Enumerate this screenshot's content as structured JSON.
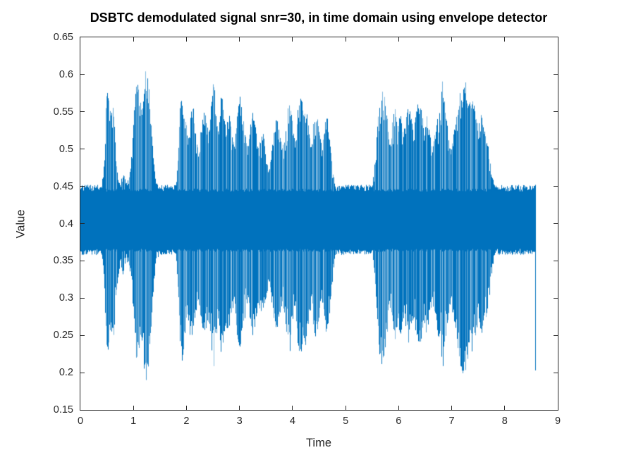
{
  "figure": {
    "background": "#ffffff"
  },
  "chart_data": {
    "type": "line",
    "title": "DSBTC demodulated signal snr=30, in time domain using envelope detector",
    "xlabel": "Time",
    "ylabel": "Value",
    "xlim": [
      0,
      9
    ],
    "ylim": [
      0.15,
      0.65
    ],
    "xticks": [
      0,
      1,
      2,
      3,
      4,
      5,
      6,
      7,
      8,
      9
    ],
    "xtick_labels": [
      "0",
      "1",
      "2",
      "3",
      "4",
      "5",
      "6",
      "7",
      "8",
      "9"
    ],
    "yticks": [
      0.15,
      0.2,
      0.25,
      0.3,
      0.35,
      0.4,
      0.45,
      0.5,
      0.55,
      0.6,
      0.65
    ],
    "ytick_labels": [
      "0.15",
      "0.2",
      "0.25",
      "0.3",
      "0.35",
      "0.4",
      "0.45",
      "0.5",
      "0.55",
      "0.6",
      "0.65"
    ],
    "grid": false,
    "legend": null,
    "line_color": "#0072bd",
    "line_color_light": "rgba(0,114,189,0.55)",
    "axis_color": "#262626",
    "signal": {
      "center": 0.405,
      "t_start": 0,
      "t_end": 8.57,
      "core_hi": 0.447,
      "core_lo": 0.362,
      "end_spike": [
        8.57,
        0.452,
        0.203
      ],
      "envelope": [
        [
          0.0,
          0.452,
          0.358
        ],
        [
          0.4,
          0.452,
          0.358
        ],
        [
          0.44,
          0.48,
          0.33
        ],
        [
          0.48,
          0.57,
          0.24
        ],
        [
          0.52,
          0.592,
          0.225
        ],
        [
          0.57,
          0.55,
          0.25
        ],
        [
          0.62,
          0.56,
          0.24
        ],
        [
          0.66,
          0.5,
          0.29
        ],
        [
          0.7,
          0.46,
          0.325
        ],
        [
          0.75,
          0.452,
          0.345
        ],
        [
          0.8,
          0.475,
          0.33
        ],
        [
          0.85,
          0.455,
          0.35
        ],
        [
          0.9,
          0.46,
          0.345
        ],
        [
          0.95,
          0.48,
          0.33
        ],
        [
          1.0,
          0.545,
          0.27
        ],
        [
          1.05,
          0.6,
          0.215
        ],
        [
          1.1,
          0.575,
          0.23
        ],
        [
          1.15,
          0.56,
          0.245
        ],
        [
          1.2,
          0.59,
          0.2
        ],
        [
          1.24,
          0.615,
          0.186
        ],
        [
          1.28,
          0.6,
          0.21
        ],
        [
          1.32,
          0.56,
          0.245
        ],
        [
          1.36,
          0.5,
          0.3
        ],
        [
          1.42,
          0.455,
          0.35
        ],
        [
          1.5,
          0.452,
          0.358
        ],
        [
          1.8,
          0.452,
          0.358
        ],
        [
          1.84,
          0.5,
          0.3
        ],
        [
          1.88,
          0.565,
          0.225
        ],
        [
          1.92,
          0.575,
          0.214
        ],
        [
          1.97,
          0.55,
          0.25
        ],
        [
          2.02,
          0.52,
          0.275
        ],
        [
          2.07,
          0.555,
          0.245
        ],
        [
          2.12,
          0.56,
          0.24
        ],
        [
          2.17,
          0.52,
          0.28
        ],
        [
          2.22,
          0.5,
          0.295
        ],
        [
          2.27,
          0.53,
          0.27
        ],
        [
          2.32,
          0.55,
          0.245
        ],
        [
          2.37,
          0.545,
          0.25
        ],
        [
          2.42,
          0.525,
          0.27
        ],
        [
          2.47,
          0.57,
          0.22
        ],
        [
          2.51,
          0.595,
          0.205
        ],
        [
          2.56,
          0.55,
          0.25
        ],
        [
          2.61,
          0.525,
          0.27
        ],
        [
          2.65,
          0.58,
          0.222
        ],
        [
          2.7,
          0.555,
          0.245
        ],
        [
          2.75,
          0.54,
          0.26
        ],
        [
          2.8,
          0.548,
          0.252
        ],
        [
          2.85,
          0.52,
          0.275
        ],
        [
          2.9,
          0.505,
          0.29
        ],
        [
          2.95,
          0.55,
          0.25
        ],
        [
          3.0,
          0.578,
          0.225
        ],
        [
          3.05,
          0.558,
          0.244
        ],
        [
          3.1,
          0.525,
          0.27
        ],
        [
          3.15,
          0.505,
          0.29
        ],
        [
          3.2,
          0.532,
          0.265
        ],
        [
          3.25,
          0.552,
          0.246
        ],
        [
          3.3,
          0.532,
          0.265
        ],
        [
          3.35,
          0.505,
          0.29
        ],
        [
          3.4,
          0.515,
          0.28
        ],
        [
          3.45,
          0.522,
          0.274
        ],
        [
          3.5,
          0.492,
          0.3
        ],
        [
          3.55,
          0.472,
          0.32
        ],
        [
          3.6,
          0.5,
          0.295
        ],
        [
          3.65,
          0.532,
          0.265
        ],
        [
          3.7,
          0.545,
          0.252
        ],
        [
          3.75,
          0.522,
          0.275
        ],
        [
          3.8,
          0.502,
          0.292
        ],
        [
          3.85,
          0.522,
          0.275
        ],
        [
          3.9,
          0.555,
          0.242
        ],
        [
          3.95,
          0.57,
          0.228
        ],
        [
          4.0,
          0.532,
          0.264
        ],
        [
          4.05,
          0.505,
          0.29
        ],
        [
          4.1,
          0.565,
          0.23
        ],
        [
          4.15,
          0.575,
          0.222
        ],
        [
          4.2,
          0.552,
          0.244
        ],
        [
          4.25,
          0.562,
          0.235
        ],
        [
          4.3,
          0.532,
          0.264
        ],
        [
          4.35,
          0.505,
          0.29
        ],
        [
          4.4,
          0.545,
          0.25
        ],
        [
          4.45,
          0.552,
          0.244
        ],
        [
          4.5,
          0.522,
          0.274
        ],
        [
          4.55,
          0.505,
          0.29
        ],
        [
          4.6,
          0.535,
          0.26
        ],
        [
          4.65,
          0.545,
          0.25
        ],
        [
          4.7,
          0.512,
          0.282
        ],
        [
          4.75,
          0.472,
          0.325
        ],
        [
          4.8,
          0.452,
          0.358
        ],
        [
          5.5,
          0.452,
          0.358
        ],
        [
          5.56,
          0.49,
          0.315
        ],
        [
          5.62,
          0.565,
          0.23
        ],
        [
          5.68,
          0.588,
          0.21
        ],
        [
          5.73,
          0.572,
          0.226
        ],
        [
          5.78,
          0.545,
          0.252
        ],
        [
          5.83,
          0.505,
          0.29
        ],
        [
          5.88,
          0.542,
          0.254
        ],
        [
          5.93,
          0.555,
          0.242
        ],
        [
          5.98,
          0.532,
          0.264
        ],
        [
          6.03,
          0.55,
          0.246
        ],
        [
          6.08,
          0.522,
          0.274
        ],
        [
          6.13,
          0.54,
          0.255
        ],
        [
          6.18,
          0.56,
          0.236
        ],
        [
          6.23,
          0.545,
          0.25
        ],
        [
          6.28,
          0.522,
          0.274
        ],
        [
          6.33,
          0.555,
          0.242
        ],
        [
          6.38,
          0.57,
          0.226
        ],
        [
          6.43,
          0.552,
          0.244
        ],
        [
          6.48,
          0.525,
          0.27
        ],
        [
          6.53,
          0.55,
          0.246
        ],
        [
          6.58,
          0.522,
          0.274
        ],
        [
          6.63,
          0.5,
          0.295
        ],
        [
          6.68,
          0.522,
          0.274
        ],
        [
          6.73,
          0.542,
          0.254
        ],
        [
          6.78,
          0.57,
          0.226
        ],
        [
          6.83,
          0.598,
          0.206
        ],
        [
          6.88,
          0.552,
          0.244
        ],
        [
          6.93,
          0.522,
          0.272
        ],
        [
          6.98,
          0.502,
          0.292
        ],
        [
          7.03,
          0.522,
          0.27
        ],
        [
          7.08,
          0.542,
          0.246
        ],
        [
          7.13,
          0.57,
          0.222
        ],
        [
          7.18,
          0.585,
          0.202
        ],
        [
          7.24,
          0.6,
          0.19
        ],
        [
          7.29,
          0.58,
          0.21
        ],
        [
          7.34,
          0.562,
          0.23
        ],
        [
          7.39,
          0.57,
          0.222
        ],
        [
          7.44,
          0.552,
          0.24
        ],
        [
          7.49,
          0.532,
          0.26
        ],
        [
          7.54,
          0.55,
          0.245
        ],
        [
          7.59,
          0.545,
          0.25
        ],
        [
          7.64,
          0.522,
          0.272
        ],
        [
          7.69,
          0.502,
          0.29
        ],
        [
          7.74,
          0.472,
          0.322
        ],
        [
          7.79,
          0.455,
          0.35
        ],
        [
          7.85,
          0.452,
          0.358
        ],
        [
          8.55,
          0.452,
          0.358
        ],
        [
          8.57,
          0.452,
          0.358
        ]
      ]
    }
  }
}
